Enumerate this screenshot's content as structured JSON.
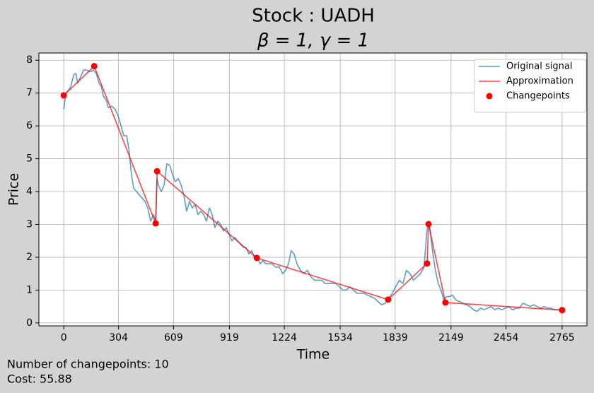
{
  "chart_data": {
    "type": "line",
    "title": "Stock : UADH",
    "subtitle": "β = 1, γ = 1",
    "x_label": "Time",
    "y_label": "Price",
    "annotations": [
      "Number of changepoints: 10",
      "Cost: 55.88"
    ],
    "xlim": [
      -138,
      2903
    ],
    "ylim": [
      -0.09,
      8.22
    ],
    "xticks": [
      0,
      304,
      609,
      919,
      1224,
      1534,
      1839,
      2149,
      2454,
      2765
    ],
    "yticks": [
      0,
      1,
      2,
      3,
      4,
      5,
      6,
      7,
      8
    ],
    "grid": true,
    "legend": "upper right",
    "series": [
      {
        "name": "Original signal",
        "type": "line",
        "color": "#1f77b4",
        "x": [
          0,
          12,
          27,
          39,
          55,
          67,
          78,
          94,
          110,
          125,
          145,
          165,
          180,
          196,
          208,
          220,
          235,
          247,
          267,
          286,
          302,
          318,
          333,
          349,
          361,
          376,
          388,
          404,
          419,
          435,
          451,
          466,
          482,
          498,
          510,
          518,
          525,
          541,
          557,
          572,
          588,
          604,
          619,
          635,
          651,
          666,
          682,
          698,
          713,
          729,
          745,
          760,
          776,
          792,
          808,
          823,
          839,
          855,
          870,
          886,
          902,
          917,
          933,
          949,
          964,
          980,
          996,
          1011,
          1027,
          1043,
          1058,
          1074,
          1090,
          1105,
          1121,
          1137,
          1156,
          1176,
          1196,
          1215,
          1231,
          1247,
          1262,
          1278,
          1294,
          1313,
          1333,
          1352,
          1372,
          1392,
          1411,
          1431,
          1450,
          1470,
          1490,
          1509,
          1529,
          1548,
          1568,
          1588,
          1607,
          1627,
          1646,
          1666,
          1686,
          1705,
          1725,
          1744,
          1764,
          1784,
          1803,
          1823,
          1842,
          1862,
          1882,
          1901,
          1921,
          1940,
          1960,
          1980,
          1999,
          2015,
          2023,
          2031,
          2046,
          2062,
          2078,
          2093,
          2109,
          2125,
          2140,
          2156,
          2176,
          2195,
          2215,
          2234,
          2254,
          2274,
          2293,
          2313,
          2332,
          2352,
          2372,
          2391,
          2411,
          2430,
          2450,
          2470,
          2489,
          2509,
          2528,
          2548,
          2568,
          2587,
          2607,
          2626,
          2646,
          2666,
          2685,
          2705,
          2724,
          2744,
          2765
        ],
        "values": [
          6.5,
          7.0,
          7.1,
          7.2,
          7.55,
          7.6,
          7.3,
          7.5,
          7.7,
          7.7,
          7.65,
          7.7,
          7.6,
          7.3,
          7.2,
          6.9,
          6.8,
          6.55,
          6.6,
          6.5,
          6.3,
          6.0,
          5.7,
          5.7,
          5.3,
          4.5,
          4.1,
          4.0,
          3.9,
          3.8,
          3.7,
          3.5,
          3.1,
          3.3,
          3.1,
          4.4,
          4.2,
          4.0,
          4.2,
          4.85,
          4.8,
          4.5,
          4.3,
          4.4,
          4.2,
          3.9,
          3.4,
          3.7,
          3.5,
          3.6,
          3.3,
          3.4,
          3.3,
          3.1,
          3.5,
          3.3,
          2.9,
          3.1,
          3.0,
          2.8,
          2.9,
          2.7,
          2.5,
          2.6,
          2.5,
          2.4,
          2.3,
          2.3,
          2.1,
          2.2,
          2.0,
          2.0,
          1.8,
          1.9,
          1.8,
          1.8,
          1.8,
          1.7,
          1.7,
          1.5,
          1.6,
          1.8,
          2.2,
          2.1,
          1.8,
          1.6,
          1.5,
          1.6,
          1.4,
          1.3,
          1.3,
          1.3,
          1.2,
          1.2,
          1.2,
          1.2,
          1.1,
          1.0,
          1.0,
          1.1,
          1.0,
          0.9,
          0.9,
          0.9,
          0.85,
          0.8,
          0.75,
          0.65,
          0.55,
          0.6,
          0.75,
          0.9,
          1.1,
          1.3,
          1.2,
          1.6,
          1.5,
          1.3,
          1.4,
          1.5,
          1.7,
          2.8,
          3.05,
          2.9,
          2.2,
          1.6,
          1.2,
          1.0,
          0.7,
          0.8,
          0.8,
          0.85,
          0.7,
          0.65,
          0.6,
          0.55,
          0.5,
          0.4,
          0.35,
          0.45,
          0.4,
          0.45,
          0.5,
          0.4,
          0.45,
          0.4,
          0.45,
          0.5,
          0.4,
          0.45,
          0.45,
          0.6,
          0.55,
          0.5,
          0.55,
          0.5,
          0.45,
          0.5,
          0.45,
          0.45,
          0.4,
          0.4,
          0.4
        ]
      },
      {
        "name": "Approximation",
        "type": "line",
        "color": "#ff0000",
        "x": [
          0,
          169,
          510,
          518,
          1071,
          1800,
          2016,
          2024,
          2118,
          2765
        ],
        "values": [
          6.93,
          7.82,
          3.03,
          4.62,
          1.98,
          0.71,
          1.81,
          3.01,
          0.62,
          0.39
        ]
      },
      {
        "name": "Changepoints",
        "type": "scatter",
        "color": "#ff0000",
        "x": [
          0,
          169,
          510,
          518,
          1071,
          1800,
          2016,
          2024,
          2118,
          2765
        ],
        "values": [
          6.93,
          7.82,
          3.03,
          4.62,
          1.98,
          0.71,
          1.81,
          3.01,
          0.62,
          0.39
        ]
      }
    ]
  }
}
